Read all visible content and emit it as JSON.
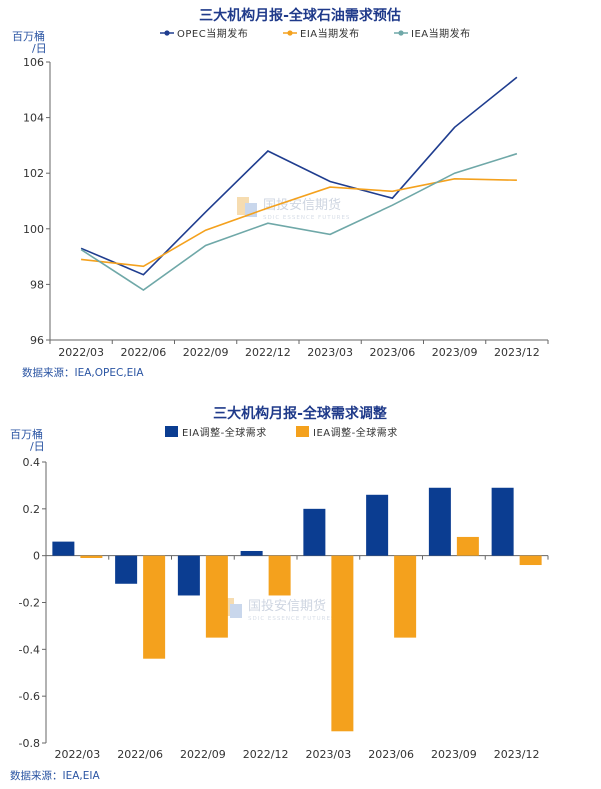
{
  "watermark": {
    "text": "国投安信期货",
    "sub": "SDIC ESSENCE FUTURES"
  },
  "chart_data": [
    {
      "type": "line",
      "title": "三大机构月报-全球石油需求预估",
      "ylabel": "百万桶/日",
      "ylabel_lines": [
        "百万桶",
        "/日"
      ],
      "xlabel": "",
      "categories": [
        "2022/03",
        "2022/06",
        "2022/09",
        "2022/12",
        "2023/03",
        "2023/06",
        "2023/09",
        "2023/12"
      ],
      "ylim": [
        96,
        106
      ],
      "yticks": [
        "96",
        "98",
        "100",
        "102",
        "104",
        "106"
      ],
      "grid": false,
      "legend_position": "top",
      "source": "数据来源：IEA,OPEC,EIA",
      "series": [
        {
          "name": "OPEC当期发布",
          "color": "#1f3d8f",
          "values": [
            99.3,
            98.35,
            100.6,
            102.8,
            101.7,
            101.1,
            103.65,
            105.45
          ]
        },
        {
          "name": "EIA当期发布",
          "color": "#f4a11d",
          "values": [
            98.9,
            98.65,
            99.95,
            100.75,
            101.5,
            101.35,
            101.8,
            101.75
          ]
        },
        {
          "name": "IEA当期发布",
          "color": "#6fa8a8",
          "values": [
            99.25,
            97.8,
            99.4,
            100.2,
            99.8,
            100.85,
            102.0,
            102.7
          ]
        }
      ]
    },
    {
      "type": "bar",
      "title": "三大机构月报-全球需求调整",
      "ylabel": "百万桶/日",
      "ylabel_lines": [
        "百万桶",
        "/日"
      ],
      "xlabel": "",
      "categories": [
        "2022/03",
        "2022/06",
        "2022/09",
        "2022/12",
        "2023/03",
        "2023/06",
        "2023/09",
        "2023/12"
      ],
      "ylim": [
        -0.8,
        0.4
      ],
      "yticks": [
        "0.4",
        "0.2",
        "0",
        "-0.2",
        "-0.4",
        "-0.6",
        "-0.8"
      ],
      "grid": false,
      "legend_position": "top",
      "source": "数据来源：IEA,EIA",
      "series": [
        {
          "name": "EIA调整-全球需求",
          "color": "#0b3d91",
          "values": [
            0.06,
            -0.12,
            -0.17,
            0.02,
            0.2,
            0.26,
            0.29,
            0.29
          ]
        },
        {
          "name": "IEA调整-全球需求",
          "color": "#f4a11d",
          "values": [
            -0.01,
            -0.44,
            -0.35,
            -0.17,
            -0.75,
            -0.35,
            0.08,
            -0.04
          ]
        }
      ]
    }
  ]
}
